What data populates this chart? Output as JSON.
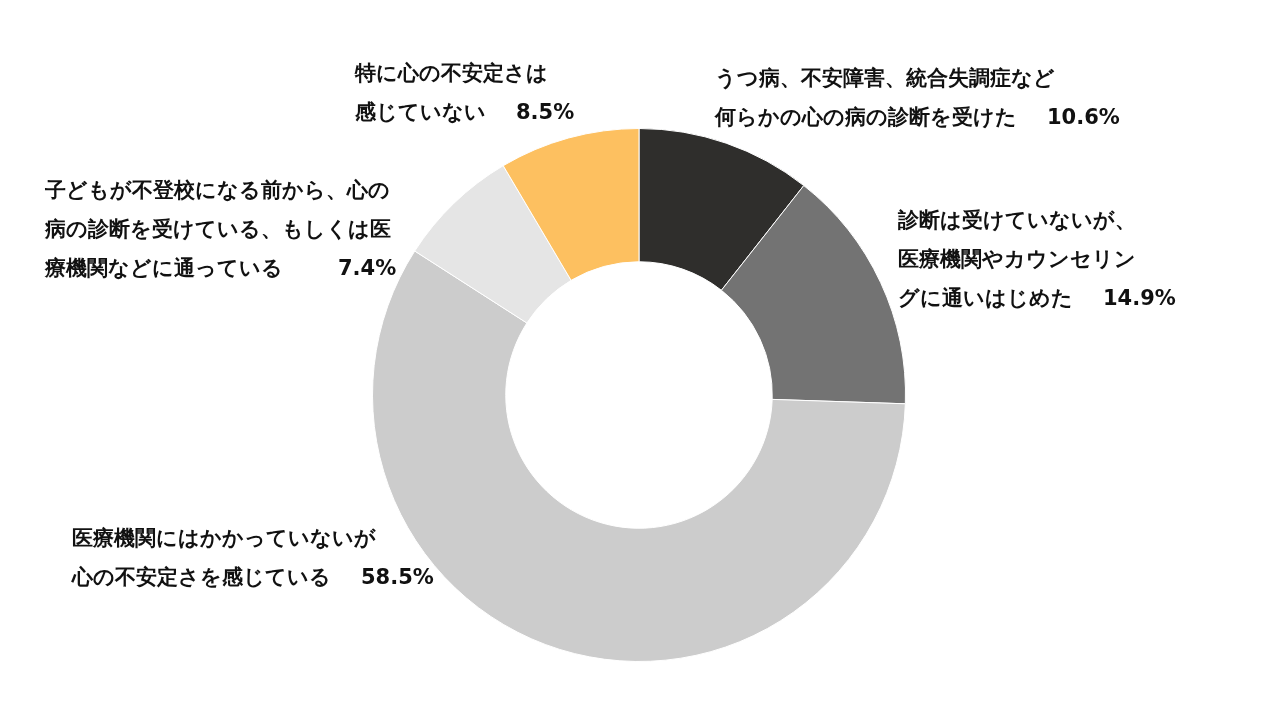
{
  "chart_data": {
    "type": "donut",
    "categories": [
      "うつ病、不安障害、統合失調症など何らかの心の病の診断を受けた",
      "診断は受けていないが、医療機関やカウンセリングに通いはじめた",
      "医療機関にはかかっていないが心の不安定さを感じている",
      "子どもが不登校になる前から、心の病の診断を受けている、もしくは医療機関などに通っている",
      "特に心の不安定さは感じていない"
    ],
    "values": [
      10.6,
      14.9,
      58.5,
      7.4,
      8.5
    ],
    "value_labels": [
      "10.6%",
      "14.9%",
      "58.5%",
      "7.4%",
      "8.5%"
    ],
    "colors": [
      "#2f2e2c",
      "#737373",
      "#cccccc",
      "#e5e5e5",
      "#fdc060"
    ],
    "legend": false
  }
}
